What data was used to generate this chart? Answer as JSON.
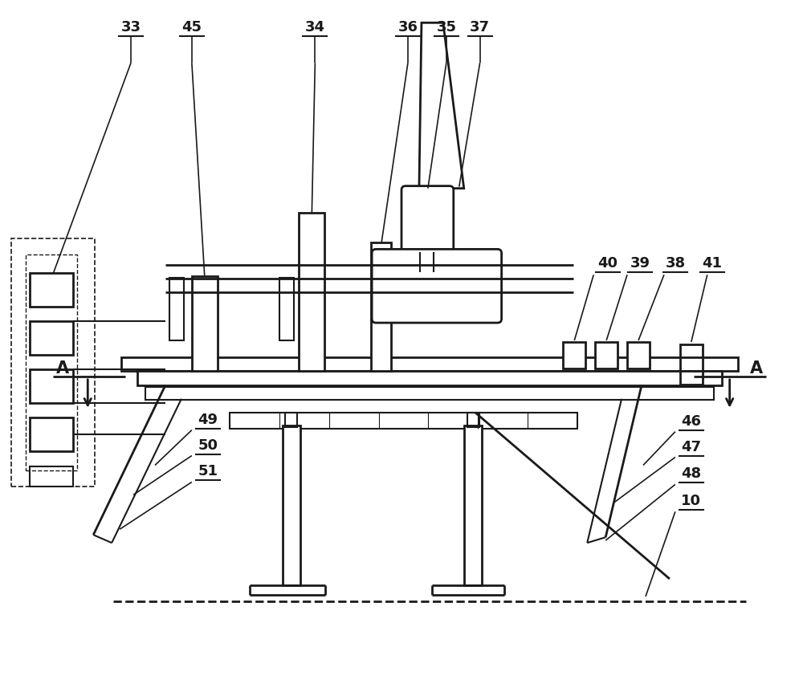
{
  "bg_color": "#ffffff",
  "lc": "#1a1a1a",
  "lw": 1.5,
  "lw2": 2.0,
  "figw": 10.0,
  "figh": 8.52
}
